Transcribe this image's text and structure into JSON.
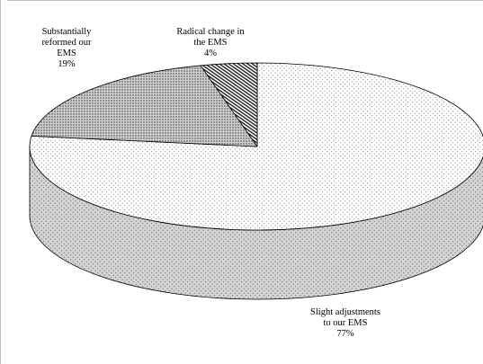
{
  "chart_data": {
    "type": "pie",
    "style": "3d",
    "slices": [
      {
        "label_lines": [
          "Slight adjustments",
          "to our EMS"
        ],
        "value": 77,
        "value_label": "77%",
        "pattern": "fine-dots"
      },
      {
        "label_lines": [
          "Substantially",
          "reformed our",
          "EMS"
        ],
        "value": 19,
        "value_label": "19%",
        "pattern": "dense-dots"
      },
      {
        "label_lines": [
          "Radical change in",
          "the EMS"
        ],
        "value": 4,
        "value_label": "4%",
        "pattern": "diagonal-stripes"
      }
    ]
  }
}
